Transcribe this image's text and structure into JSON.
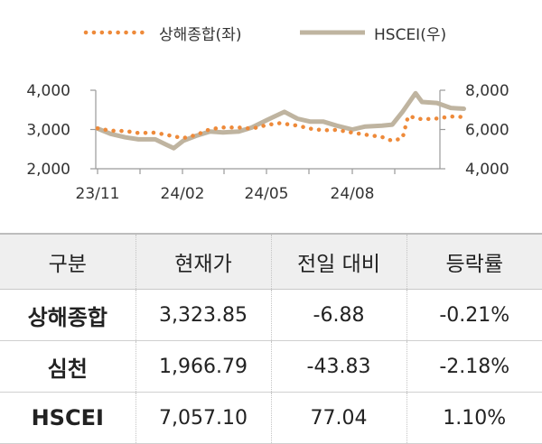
{
  "chart_data": {
    "type": "line",
    "x_ticks": [
      "23/11",
      "24/02",
      "24/05",
      "24/08"
    ],
    "series": [
      {
        "name": "상해종합(좌)",
        "axis": "left",
        "color": "#ee8a3a",
        "style": "dotted",
        "x": [
          "2023-11-01",
          "2023-11-15",
          "2023-12-01",
          "2023-12-15",
          "2024-01-02",
          "2024-01-15",
          "2024-02-01",
          "2024-02-15",
          "2024-03-01",
          "2024-03-15",
          "2024-04-01",
          "2024-04-15",
          "2024-05-02",
          "2024-05-15",
          "2024-06-03",
          "2024-06-17",
          "2024-07-01",
          "2024-07-15",
          "2024-08-01",
          "2024-08-15",
          "2024-09-02",
          "2024-09-13",
          "2024-09-24",
          "2024-09-30",
          "2024-10-15",
          "2024-10-31",
          "2024-11-15",
          "2024-11-29"
        ],
        "values": [
          3030,
          2970,
          2960,
          2910,
          2920,
          2860,
          2780,
          2860,
          3010,
          3050,
          3050,
          3020,
          3120,
          3160,
          3100,
          3020,
          2980,
          2990,
          2920,
          2870,
          2810,
          2710,
          2780,
          3340,
          3260,
          3280,
          3330,
          3320
        ]
      },
      {
        "name": "HSCEI(우)",
        "axis": "right",
        "color": "#bfb4a0",
        "style": "solid",
        "x": [
          "2023-11-01",
          "2023-11-15",
          "2023-12-01",
          "2023-12-15",
          "2024-01-02",
          "2024-01-15",
          "2024-01-22",
          "2024-02-01",
          "2024-02-15",
          "2024-03-01",
          "2024-03-15",
          "2024-04-01",
          "2024-04-15",
          "2024-05-02",
          "2024-05-20",
          "2024-06-03",
          "2024-06-17",
          "2024-07-01",
          "2024-07-15",
          "2024-08-01",
          "2024-08-15",
          "2024-09-02",
          "2024-09-13",
          "2024-09-24",
          "2024-10-08",
          "2024-10-15",
          "2024-10-31",
          "2024-11-15",
          "2024-11-29"
        ],
        "values": [
          6050,
          5780,
          5600,
          5500,
          5500,
          5200,
          5050,
          5420,
          5680,
          5900,
          5850,
          5900,
          6100,
          6500,
          6900,
          6550,
          6400,
          6400,
          6200,
          6000,
          6150,
          6200,
          6250,
          6900,
          7850,
          7400,
          7350,
          7100,
          7057
        ]
      }
    ],
    "y_left": {
      "ticks": [
        "2,000",
        "3,000",
        "4,000"
      ],
      "range": [
        2000,
        4000
      ]
    },
    "y_right": {
      "ticks": [
        "4,000",
        "6,000",
        "8,000"
      ],
      "range": [
        4000,
        8000
      ]
    },
    "legend_position": "top-center"
  },
  "table": {
    "headers": [
      "구분",
      "현재가",
      "전일 대비",
      "등락률"
    ],
    "rows": [
      [
        "상해종합",
        "3,323.85",
        "-6.88",
        "-0.21%"
      ],
      [
        "심천",
        "1,966.79",
        "-43.83",
        "-2.18%"
      ],
      [
        "HSCEI",
        "7,057.10",
        "77.04",
        "1.10%"
      ]
    ]
  }
}
